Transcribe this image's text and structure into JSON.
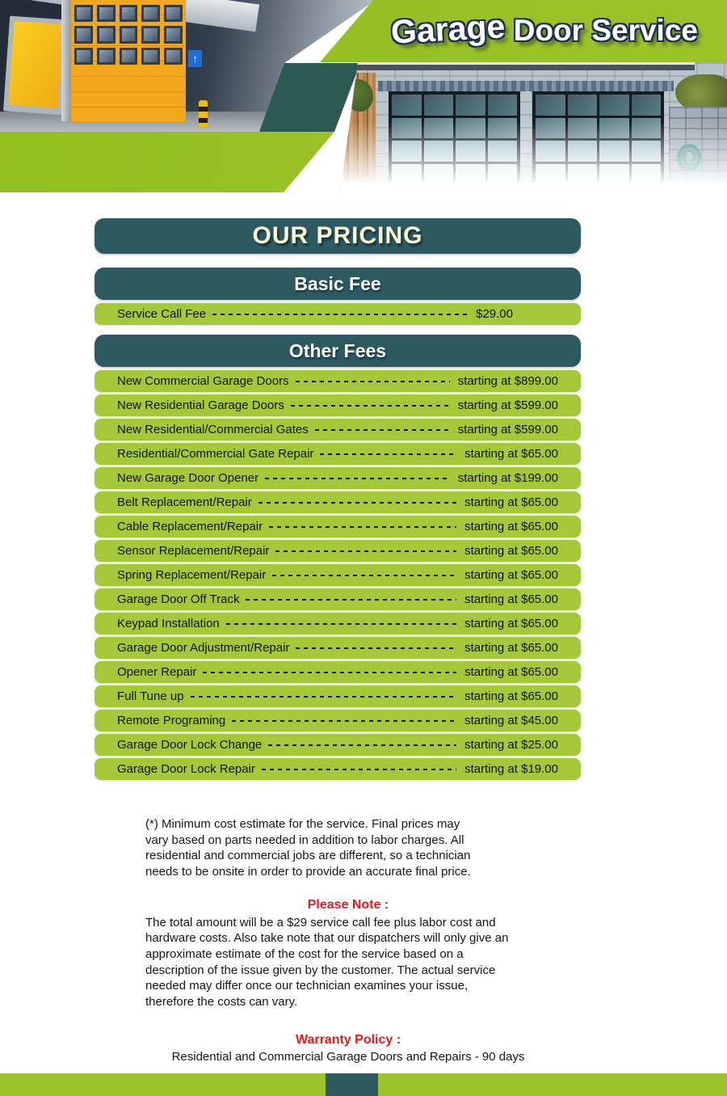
{
  "header": {
    "title_word1": "Garage",
    "title_rest": "Door Service",
    "up_arrow": "↑"
  },
  "pricing": {
    "title": "OUR PRICING",
    "basic": {
      "heading": "Basic Fee",
      "row": {
        "label": "Service Call Fee",
        "price": "$29.00"
      }
    },
    "other": {
      "heading": "Other Fees",
      "rows": [
        {
          "label": "New Commercial Garage Doors",
          "price": "starting at $899.00"
        },
        {
          "label": "New Residential Garage Doors",
          "price": "starting at $599.00"
        },
        {
          "label": "New Residential/Commercial Gates",
          "price": "starting at $599.00"
        },
        {
          "label": "Residential/Commercial Gate Repair",
          "price": "starting at $65.00"
        },
        {
          "label": "New Garage Door Opener",
          "price": "starting at $199.00"
        },
        {
          "label": "Belt Replacement/Repair",
          "price": "starting at $65.00"
        },
        {
          "label": "Cable Replacement/Repair",
          "price": "starting at $65.00"
        },
        {
          "label": "Sensor Replacement/Repair",
          "price": "starting at $65.00"
        },
        {
          "label": "Spring Replacement/Repair",
          "price": "starting at $65.00"
        },
        {
          "label": "Garage Door Off Track",
          "price": "starting at $65.00"
        },
        {
          "label": "Keypad Installation",
          "price": "starting at $65.00"
        },
        {
          "label": "Garage Door Adjustment/Repair",
          "price": "starting at $65.00"
        },
        {
          "label": "Opener Repair",
          "price": "starting at $65.00"
        },
        {
          "label": "Full Tune up",
          "price": "starting at $65.00"
        },
        {
          "label": "Remote Programing",
          "price": "starting at $45.00"
        },
        {
          "label": "Garage Door Lock Change",
          "price": "starting at $25.00"
        },
        {
          "label": "Garage Door Lock Repair",
          "price": "starting at $19.00"
        }
      ]
    }
  },
  "notes": {
    "disclaimer": "(*) Minimum cost estimate for the service. Final prices may\nvary based on parts needed in addition to labor charges. All\nresidential and commercial jobs are different, so a technician\nneeds to be onsite in order to provide an accurate final price.",
    "please_note_heading": "Please Note :",
    "please_note_body": "The total amount will be a $29 service call fee plus labor cost and\nhardware costs. Also take note that our dispatchers will only give an\napproximate estimate of the cost for the service based on a\ndescription of the issue given by the customer. The actual service\nneeded may differ once our technician examines your issue,\ntherefore the costs can vary.",
    "warranty_heading": "Warranty Policy :",
    "warranty_body": "Residential and Commercial Garage Doors and Repairs - 90 days"
  },
  "colors": {
    "lime_green": "#9cc32c",
    "row_green": "#a5c838",
    "dark_teal": "#2d5a60",
    "accent_teal": "#2c5a52",
    "heading_red": "#e21b20",
    "title_cream": "#fcfad6"
  }
}
